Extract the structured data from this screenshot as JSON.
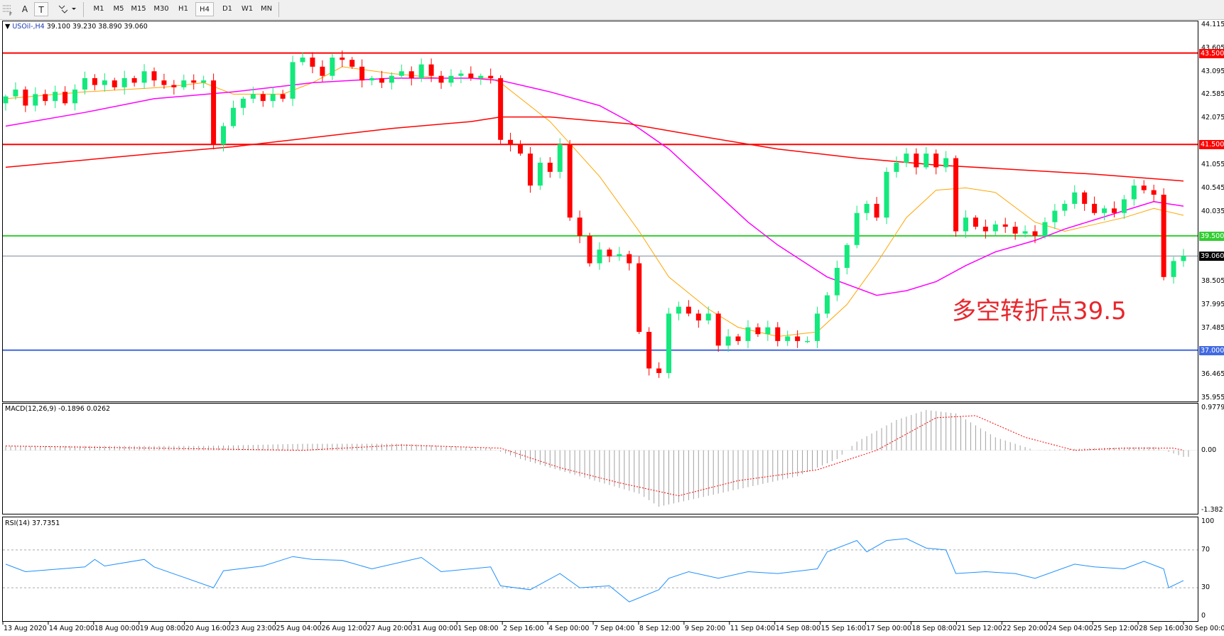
{
  "toolbar": {
    "icons": [
      "fibonacci-icon",
      "text-icon",
      "text-label-icon",
      "arrows-icon"
    ],
    "text_tool": "A",
    "label_tool": "T",
    "timeframes": [
      "M1",
      "M5",
      "M15",
      "M30",
      "H1",
      "H4",
      "D1",
      "W1",
      "MN"
    ],
    "active_timeframe": "H4"
  },
  "main": {
    "symbol": "USOil-,H4",
    "ohlc": "39.100 39.230 38.890 39.060",
    "annotation": "多空转折点39.5",
    "price_ticks": [
      "44.115",
      "43.605",
      "43.095",
      "42.585",
      "42.075",
      "41.055",
      "40.545",
      "40.035",
      "38.505",
      "37.995",
      "37.485",
      "36.465",
      "35.955"
    ],
    "levels": [
      {
        "label": "43.500",
        "price": 43.5,
        "color": "#ff0000"
      },
      {
        "label": "41.500",
        "price": 41.5,
        "color": "#ff0000"
      },
      {
        "label": "39.500",
        "price": 39.5,
        "color": "#32cd32"
      },
      {
        "label": "37.000",
        "price": 37.0,
        "color": "#4169e1"
      }
    ],
    "current_price": {
      "label": "39.060",
      "price": 39.06,
      "color": "#000000"
    }
  },
  "macd": {
    "label": "MACD(12,26,9) -0.1896 0.0262",
    "ticks": [
      "0.9779",
      "0.00",
      "-1.382"
    ]
  },
  "rsi": {
    "label": "RSI(14) 37.7351",
    "ticks": [
      "100",
      "70",
      "30",
      "0"
    ]
  },
  "time_labels": [
    "13 Aug 2020",
    "14 Aug 20:00",
    "18 Aug 00:00",
    "19 Aug 08:00",
    "20 Aug 16:00",
    "23 Aug 23:00",
    "25 Aug 04:00",
    "26 Aug 12:00",
    "27 Aug 20:00",
    "31 Aug 00:00",
    "1 Sep 08:00",
    "2 Sep 16:00",
    "4 Sep 00:00",
    "7 Sep 04:00",
    "8 Sep 12:00",
    "9 Sep 20:00",
    "11 Sep 04:00",
    "14 Sep 08:00",
    "15 Sep 16:00",
    "17 Sep 00:00",
    "18 Sep 08:00",
    "21 Sep 12:00",
    "22 Sep 20:00",
    "24 Sep 04:00",
    "25 Sep 12:00",
    "28 Sep 16:00",
    "30 Sep 00:00"
  ],
  "chart_data": {
    "type": "candlestick",
    "ylim": [
      35.955,
      44.115
    ],
    "colors": {
      "up": "#13e97c",
      "down": "#ff0000",
      "ma_fast": "#ffa500",
      "ma_mid": "#ff00ff",
      "ma_slow": "#ff0000",
      "rsi": "#1e90ff",
      "macd_hist": "#a0a0a0",
      "macd_signal": "#ff0000"
    },
    "first_open": 42.4,
    "closes": [
      42.55,
      42.7,
      42.35,
      42.6,
      42.45,
      42.65,
      42.4,
      42.7,
      42.95,
      42.8,
      42.9,
      42.75,
      42.95,
      42.85,
      43.1,
      42.9,
      42.8,
      42.75,
      42.9,
      42.85,
      42.9,
      41.5,
      41.9,
      42.3,
      42.5,
      42.6,
      42.45,
      42.6,
      42.5,
      43.3,
      43.4,
      43.2,
      43.0,
      43.4,
      43.35,
      43.2,
      42.9,
      42.95,
      42.85,
      43.0,
      43.1,
      42.95,
      43.25,
      43.0,
      42.85,
      43.0,
      43.05,
      42.95,
      43.0,
      42.95,
      41.6,
      41.5,
      41.3,
      40.6,
      41.1,
      40.9,
      41.5,
      39.9,
      39.5,
      38.9,
      39.2,
      39.05,
      39.1,
      38.9,
      37.4,
      36.6,
      36.5,
      37.8,
      37.95,
      37.8,
      37.65,
      37.8,
      37.1,
      37.3,
      37.2,
      37.5,
      37.35,
      37.5,
      37.2,
      37.3,
      37.2,
      37.2,
      37.8,
      38.2,
      38.8,
      39.3,
      40.0,
      40.2,
      39.9,
      40.9,
      41.1,
      41.3,
      41.0,
      41.3,
      41.0,
      41.2,
      39.6,
      39.9,
      39.7,
      39.6,
      39.75,
      39.7,
      39.55,
      39.6,
      39.5,
      39.8,
      40.05,
      40.2,
      40.45,
      40.2,
      40.0,
      40.1,
      40.0,
      40.3,
      40.6,
      40.5,
      40.4,
      38.6,
      38.95,
      39.06
    ],
    "ma_fast": [
      [
        0,
        42.5
      ],
      [
        8,
        42.65
      ],
      [
        16,
        42.75
      ],
      [
        20,
        42.85
      ],
      [
        23,
        42.6
      ],
      [
        28,
        42.6
      ],
      [
        31,
        42.85
      ],
      [
        34,
        43.2
      ],
      [
        39,
        43.05
      ],
      [
        44,
        42.95
      ],
      [
        49,
        42.95
      ],
      [
        50,
        42.85
      ],
      [
        55,
        42.0
      ],
      [
        60,
        40.8
      ],
      [
        64,
        39.6
      ],
      [
        67,
        38.6
      ],
      [
        71,
        37.9
      ],
      [
        74,
        37.5
      ],
      [
        78,
        37.3
      ],
      [
        82,
        37.4
      ],
      [
        85,
        38.0
      ],
      [
        88,
        38.9
      ],
      [
        91,
        39.9
      ],
      [
        94,
        40.5
      ],
      [
        97,
        40.55
      ],
      [
        100,
        40.45
      ],
      [
        104,
        39.8
      ],
      [
        107,
        39.6
      ],
      [
        110,
        39.75
      ],
      [
        113,
        39.9
      ],
      [
        116,
        40.1
      ],
      [
        119,
        39.95
      ]
    ],
    "ma_mid": [
      [
        0,
        41.9
      ],
      [
        8,
        42.2
      ],
      [
        15,
        42.5
      ],
      [
        23,
        42.65
      ],
      [
        31,
        42.85
      ],
      [
        39,
        42.95
      ],
      [
        47,
        42.95
      ],
      [
        50,
        42.9
      ],
      [
        55,
        42.65
      ],
      [
        60,
        42.35
      ],
      [
        63,
        42.0
      ],
      [
        67,
        41.4
      ],
      [
        71,
        40.6
      ],
      [
        75,
        39.8
      ],
      [
        78,
        39.3
      ],
      [
        83,
        38.6
      ],
      [
        88,
        38.2
      ],
      [
        91,
        38.3
      ],
      [
        94,
        38.5
      ],
      [
        97,
        38.85
      ],
      [
        100,
        39.15
      ],
      [
        104,
        39.4
      ],
      [
        107,
        39.65
      ],
      [
        110,
        39.85
      ],
      [
        113,
        40.05
      ],
      [
        116,
        40.25
      ],
      [
        119,
        40.15
      ]
    ],
    "ma_slow": [
      [
        0,
        41.0
      ],
      [
        15,
        41.3
      ],
      [
        23,
        41.45
      ],
      [
        31,
        41.65
      ],
      [
        39,
        41.85
      ],
      [
        47,
        42.0
      ],
      [
        50,
        42.1
      ],
      [
        55,
        42.1
      ],
      [
        63,
        41.95
      ],
      [
        71,
        41.65
      ],
      [
        78,
        41.4
      ],
      [
        86,
        41.2
      ],
      [
        94,
        41.05
      ],
      [
        102,
        40.95
      ],
      [
        110,
        40.85
      ],
      [
        119,
        40.7
      ]
    ],
    "macd_ylim": [
      -1.382,
      0.9779
    ],
    "macd_hist": [
      [
        0,
        0.1
      ],
      [
        20,
        0.1
      ],
      [
        30,
        0.15
      ],
      [
        40,
        0.15
      ],
      [
        49,
        0.05
      ],
      [
        52,
        -0.2
      ],
      [
        58,
        -0.6
      ],
      [
        64,
        -1.0
      ],
      [
        66,
        -1.3
      ],
      [
        70,
        -1.1
      ],
      [
        80,
        -0.6
      ],
      [
        84,
        -0.2
      ],
      [
        86,
        0.2
      ],
      [
        90,
        0.7
      ],
      [
        93,
        0.93
      ],
      [
        96,
        0.85
      ],
      [
        100,
        0.3
      ],
      [
        104,
        0.0
      ],
      [
        110,
        0.05
      ],
      [
        116,
        0.08
      ],
      [
        119,
        -0.15
      ]
    ],
    "macd_signal": [
      [
        0,
        0.1
      ],
      [
        30,
        0.0
      ],
      [
        40,
        0.12
      ],
      [
        50,
        0.05
      ],
      [
        56,
        -0.4
      ],
      [
        62,
        -0.75
      ],
      [
        68,
        -1.05
      ],
      [
        74,
        -0.7
      ],
      [
        82,
        -0.45
      ],
      [
        88,
        0.0
      ],
      [
        94,
        0.75
      ],
      [
        98,
        0.8
      ],
      [
        103,
        0.3
      ],
      [
        108,
        0.0
      ],
      [
        113,
        0.05
      ],
      [
        118,
        0.05
      ],
      [
        119,
        0.0
      ]
    ],
    "rsi_ylim": [
      0,
      100
    ],
    "rsi_levels": [
      70,
      30
    ],
    "rsi": [
      [
        0,
        55
      ],
      [
        2,
        47
      ],
      [
        8,
        52
      ],
      [
        9,
        60
      ],
      [
        10,
        53
      ],
      [
        14,
        60
      ],
      [
        15,
        52
      ],
      [
        21,
        30
      ],
      [
        22,
        48
      ],
      [
        26,
        53
      ],
      [
        29,
        63
      ],
      [
        31,
        60
      ],
      [
        34,
        59
      ],
      [
        37,
        50
      ],
      [
        42,
        62
      ],
      [
        44,
        47
      ],
      [
        49,
        52
      ],
      [
        50,
        32
      ],
      [
        53,
        28
      ],
      [
        56,
        45
      ],
      [
        58,
        30
      ],
      [
        61,
        32
      ],
      [
        63,
        15
      ],
      [
        66,
        28
      ],
      [
        67,
        40
      ],
      [
        69,
        47
      ],
      [
        72,
        40
      ],
      [
        75,
        47
      ],
      [
        78,
        45
      ],
      [
        82,
        50
      ],
      [
        83,
        68
      ],
      [
        86,
        80
      ],
      [
        87,
        68
      ],
      [
        89,
        80
      ],
      [
        91,
        82
      ],
      [
        93,
        72
      ],
      [
        95,
        70
      ],
      [
        96,
        45
      ],
      [
        99,
        47
      ],
      [
        102,
        45
      ],
      [
        104,
        40
      ],
      [
        108,
        55
      ],
      [
        110,
        52
      ],
      [
        113,
        50
      ],
      [
        115,
        58
      ],
      [
        117,
        50
      ],
      [
        117.5,
        30
      ],
      [
        119,
        37.7
      ]
    ]
  }
}
